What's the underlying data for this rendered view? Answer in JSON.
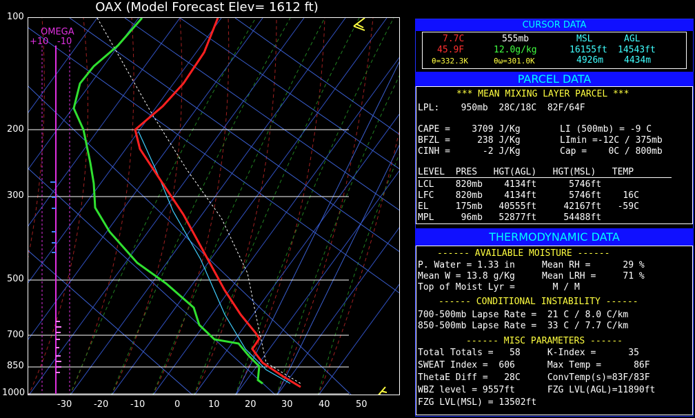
{
  "title": "OAX  (Model Forecast Elev=  1612 ft)",
  "plot": {
    "pressure_labels": [
      "100",
      "200",
      "300",
      "500",
      "700",
      "850",
      "1000"
    ],
    "temp_labels": [
      "-30",
      "-20",
      "-10",
      "0",
      "10",
      "20",
      "30",
      "40",
      "50"
    ],
    "omega": {
      "label": "OMEGA",
      "left": "+10",
      "right": "-10"
    }
  },
  "cursor": {
    "header": "CURSOR DATA",
    "temp_c": "7.7C",
    "temp_f": "45.9F",
    "pressure": "555mb",
    "mixing": "12.0g/kg",
    "theta": "θ=332.3K",
    "theta_w": "θω=301.0K",
    "msl_label": "MSL",
    "agl_label": "AGL",
    "msl_ft": "16155ft",
    "agl_ft": "14543ft",
    "msl_m": "4926m",
    "agl_m": "4434m"
  },
  "parcel": {
    "header": "PARCEL DATA",
    "subtitle": "*** MEAN MIXING LAYER PARCEL ***",
    "lpl": "LPL:    950mb  28C/18C  82F/64F",
    "cape": "CAPE =    3709 J/Kg",
    "bfzl": "BFZL =     238 J/Kg",
    "cinh": "CINH =      -2 J/Kg",
    "li": "LI (500mb) = -9 C",
    "limin": "LImin =-12C / 375mb",
    "cap": "Cap =    0C / 800mb",
    "table_header": "LEVEL  PRES   HGT(AGL)   HGT(MSL)   TEMP",
    "rows": [
      "LCL    820mb    4134ft      5746ft",
      "LFC    820mb    4134ft      5746ft    16C",
      "EL     175mb   40555ft     42167ft   -59C",
      "MPL     96mb   52877ft     54488ft"
    ]
  },
  "thermo": {
    "header": "THERMODYNAMIC DATA",
    "moisture_title": "------ AVAILABLE MOISTURE ------",
    "moisture": [
      "P. Water = 1.33 in     Mean RH =      29 %",
      "Mean W = 13.8 g/Kg     Mean LRH =     71 %",
      "Top of Moist Lyr =       M / M"
    ],
    "instab_title": "------ CONDITIONAL INSTABILITY ------",
    "instab": [
      "700-500mb Lapse Rate =  21 C / 8.0 C/km",
      "850-500mb Lapse Rate =  33 C / 7.7 C/km"
    ],
    "misc_title": "------ MISC PARAMETERS ------",
    "misc": [
      "Total Totals =   58     K-Index =      35",
      "SWEAT Index =  606      Max Temp =      86F",
      "ThetaE Diff =   28C     ConvTemp(s)=83F/83F",
      "WBZ level = 9557ft      FZG LVL(AGL)=11890ft",
      "FZG LVL(MSL) = 13502ft"
    ]
  }
}
